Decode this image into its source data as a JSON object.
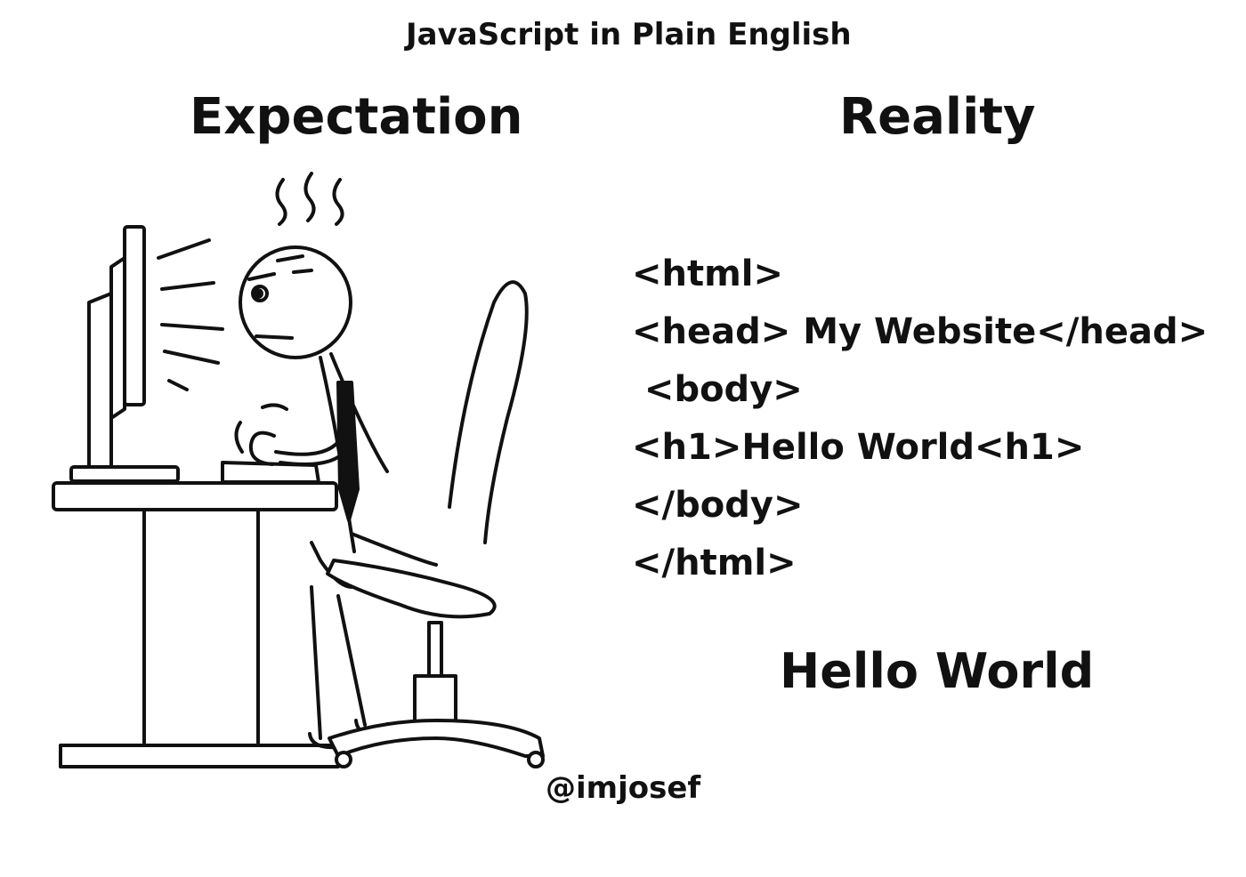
{
  "brand": "JavaScript in Plain English",
  "left_heading": "Expectation",
  "right_heading": "Reality",
  "code_lines": [
    "<html>",
    "<head> My Website</head>",
    " <body>",
    "<h1>Hello World<h1>",
    "</body>",
    "</html>"
  ],
  "result_text": "Hello World",
  "author_handle": "@imjosef",
  "illustration": {
    "subject": "stick-figure-programmer-at-computer-icon",
    "stroke_color": "#111111"
  }
}
